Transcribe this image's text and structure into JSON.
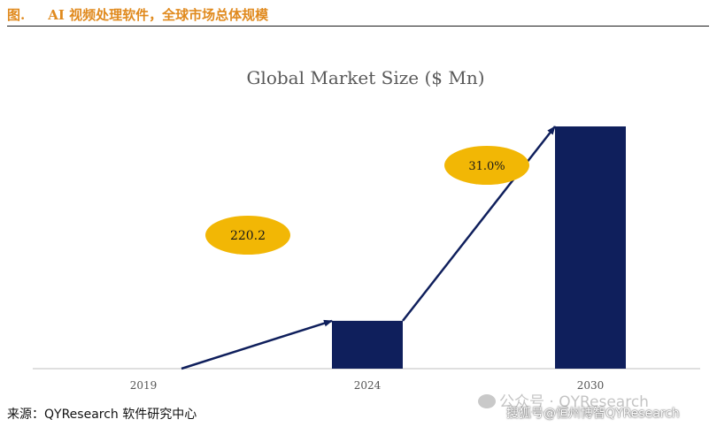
{
  "figure": {
    "label": "图.",
    "title": "AI 视频处理软件，全球市场总体规模"
  },
  "chart_data": {
    "type": "bar",
    "title": "Global Market Size ($ Mn)",
    "categories": [
      "2019",
      "2024",
      "2030"
    ],
    "values": [
      0,
      220.2,
      1115
    ],
    "ylim": [
      0,
      1115
    ],
    "grid": false,
    "annotations": [
      {
        "text": "220.2",
        "refers_to": "2024"
      },
      {
        "text": "31.0%",
        "refers_to": "CAGR 2024-2030"
      }
    ],
    "colors": {
      "bar": "#0f1f5c",
      "arrow": "#0f1f5c",
      "ellipse": "#f2b705",
      "title": "#595959",
      "tick": "#555555",
      "axis": "#bfbfbf"
    }
  },
  "source": "来源：QYResearch 软件研究中心",
  "watermarks": {
    "wechat": "公众号 · QYResearch",
    "sohu": "搜狐号@恒州博智QYResearch",
    "wechat_icon": "wechat-icon"
  }
}
